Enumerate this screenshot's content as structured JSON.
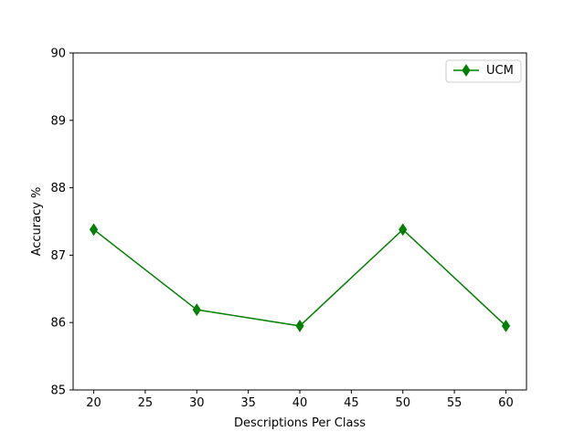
{
  "chart_data": {
    "type": "line",
    "xlabel": "Descriptions Per Class",
    "ylabel": "Accuracy %",
    "xlim": [
      18,
      62
    ],
    "ylim": [
      85,
      90
    ],
    "xticks": [
      20,
      25,
      30,
      35,
      40,
      45,
      50,
      55,
      60
    ],
    "yticks": [
      85,
      86,
      87,
      88,
      89,
      90
    ],
    "grid": false,
    "legend_position": "top-right",
    "series": [
      {
        "name": "UCM",
        "color": "#008000",
        "marker": "thin-diamond",
        "x": [
          20,
          30,
          40,
          50,
          60
        ],
        "y": [
          87.38,
          86.19,
          85.95,
          87.38,
          85.95
        ]
      }
    ]
  }
}
